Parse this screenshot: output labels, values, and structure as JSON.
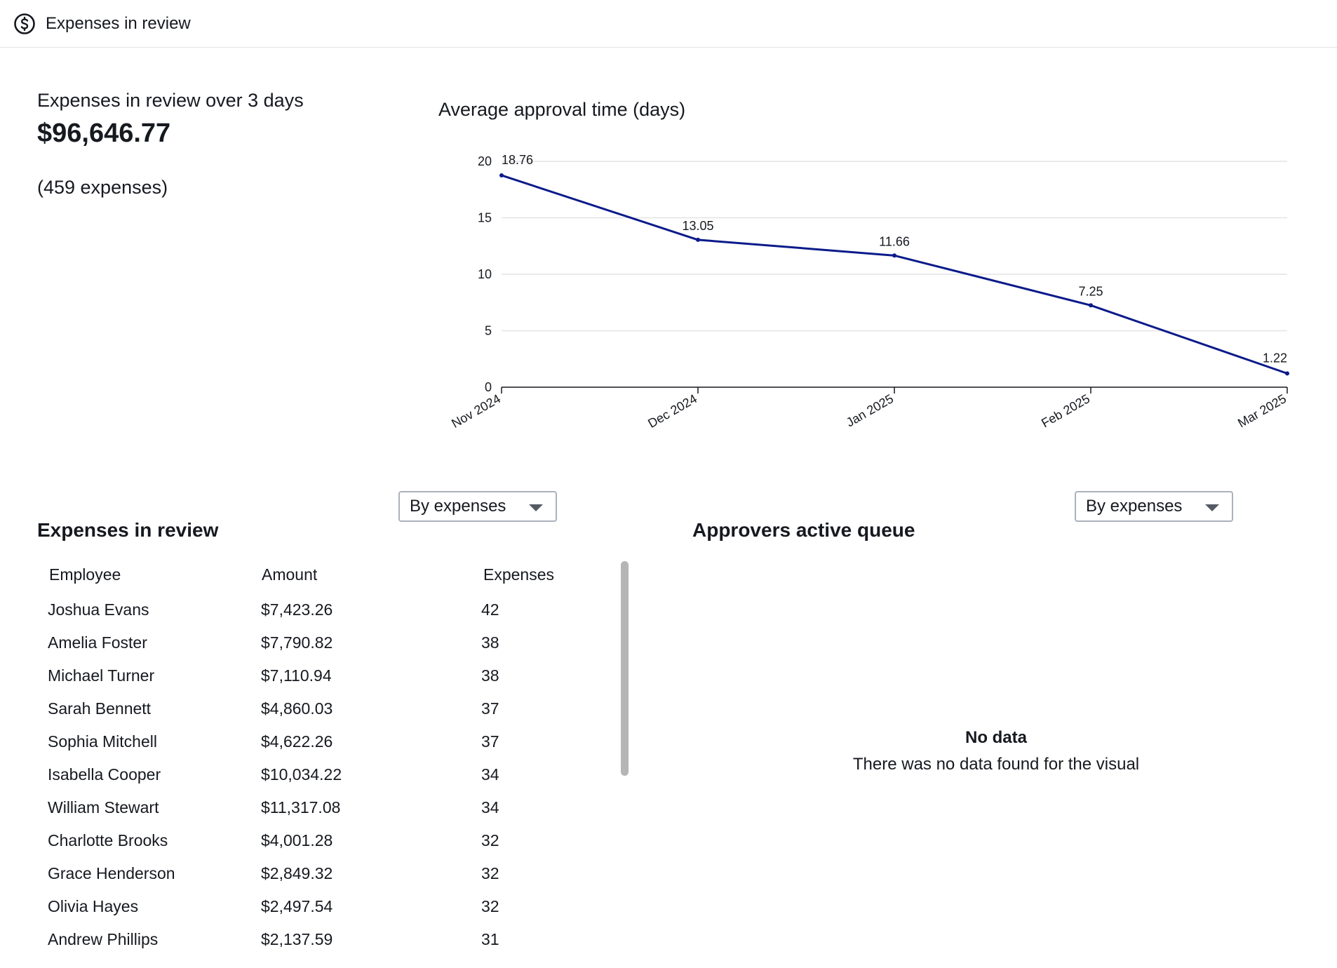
{
  "header": {
    "title": "Expenses in review",
    "icon": "dollar-circle-icon"
  },
  "kpi": {
    "label": "Expenses in review over 3 days",
    "value": "$96,646.77",
    "count": "(459 expenses)"
  },
  "chart_data": {
    "type": "line",
    "title": "Average approval time (days)",
    "categories": [
      "Nov 2024",
      "Dec 2024",
      "Jan 2025",
      "Feb 2025",
      "Mar 2025"
    ],
    "values": [
      18.76,
      13.05,
      11.66,
      7.25,
      1.22
    ],
    "data_labels": [
      "18.76",
      "13.05",
      "11.66",
      "7.25",
      "1.22"
    ],
    "yticks": [
      "0",
      "5",
      "10",
      "15",
      "20"
    ],
    "ylim": [
      0,
      20
    ],
    "grid": true,
    "line_color": "#0b1a8a"
  },
  "left_panel": {
    "dropdown_label": "By expenses",
    "title": "Expenses in review",
    "columns": [
      "Employee",
      "Amount",
      "Expenses"
    ],
    "rows": [
      [
        "Joshua Evans",
        "$7,423.26",
        "42"
      ],
      [
        "Amelia Foster",
        "$7,790.82",
        "38"
      ],
      [
        "Michael Turner",
        "$7,110.94",
        "38"
      ],
      [
        "Sarah Bennett",
        "$4,860.03",
        "37"
      ],
      [
        "Sophia Mitchell",
        "$4,622.26",
        "37"
      ],
      [
        "Isabella Cooper",
        "$10,034.22",
        "34"
      ],
      [
        "William Stewart",
        "$11,317.08",
        "34"
      ],
      [
        "Charlotte Brooks",
        "$4,001.28",
        "32"
      ],
      [
        "Grace Henderson",
        "$2,849.32",
        "32"
      ],
      [
        "Olivia Hayes",
        "$2,497.54",
        "32"
      ],
      [
        "Andrew Phillips",
        "$2,137.59",
        "31"
      ]
    ]
  },
  "right_panel": {
    "dropdown_label": "By expenses",
    "title": "Approvers active queue",
    "nodata_title": "No data",
    "nodata_message": "There was no data found for the visual"
  }
}
